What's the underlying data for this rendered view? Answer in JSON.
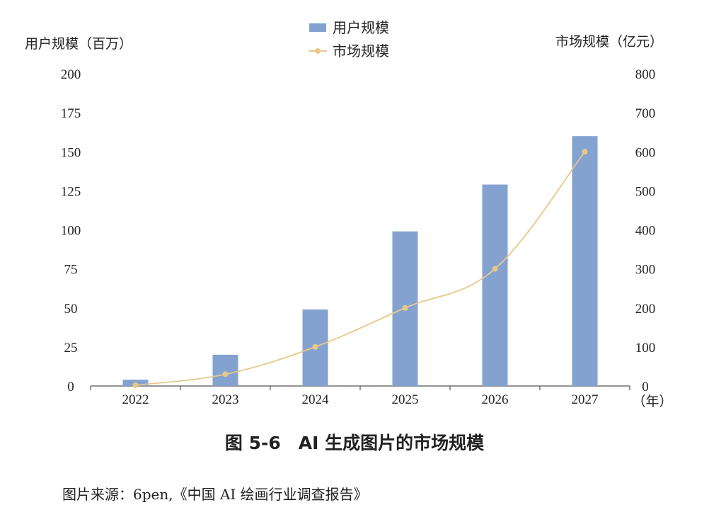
{
  "chart_data": {
    "type": "bar",
    "categories": [
      "2022",
      "2023",
      "2024",
      "2025",
      "2026",
      "2027"
    ],
    "x_unit_label": "（年）",
    "series": [
      {
        "name": "用户规模",
        "type": "bar",
        "axis": "left",
        "color": "#84a2d0",
        "values": [
          4,
          20,
          49,
          99,
          129,
          160
        ]
      },
      {
        "name": "市场规模",
        "type": "line",
        "axis": "right",
        "color": "#e8c88a",
        "values": [
          2,
          30,
          100,
          200,
          300,
          600
        ]
      }
    ],
    "y_left": {
      "label": "用户规模（百万）",
      "ylim": [
        0,
        200
      ],
      "ticks": [
        0,
        25,
        50,
        75,
        100,
        125,
        150,
        175,
        200
      ]
    },
    "y_right": {
      "label": "市场规模（亿元）",
      "ylim": [
        0,
        800
      ],
      "ticks": [
        0,
        100,
        200,
        300,
        400,
        500,
        600,
        700,
        800
      ]
    },
    "grid": false,
    "legend_position": "top-center"
  },
  "caption": "图 5-6　AI 生成图片的市场规模",
  "source": "图片来源：6pen,《中国 AI 绘画行业调查报告》"
}
